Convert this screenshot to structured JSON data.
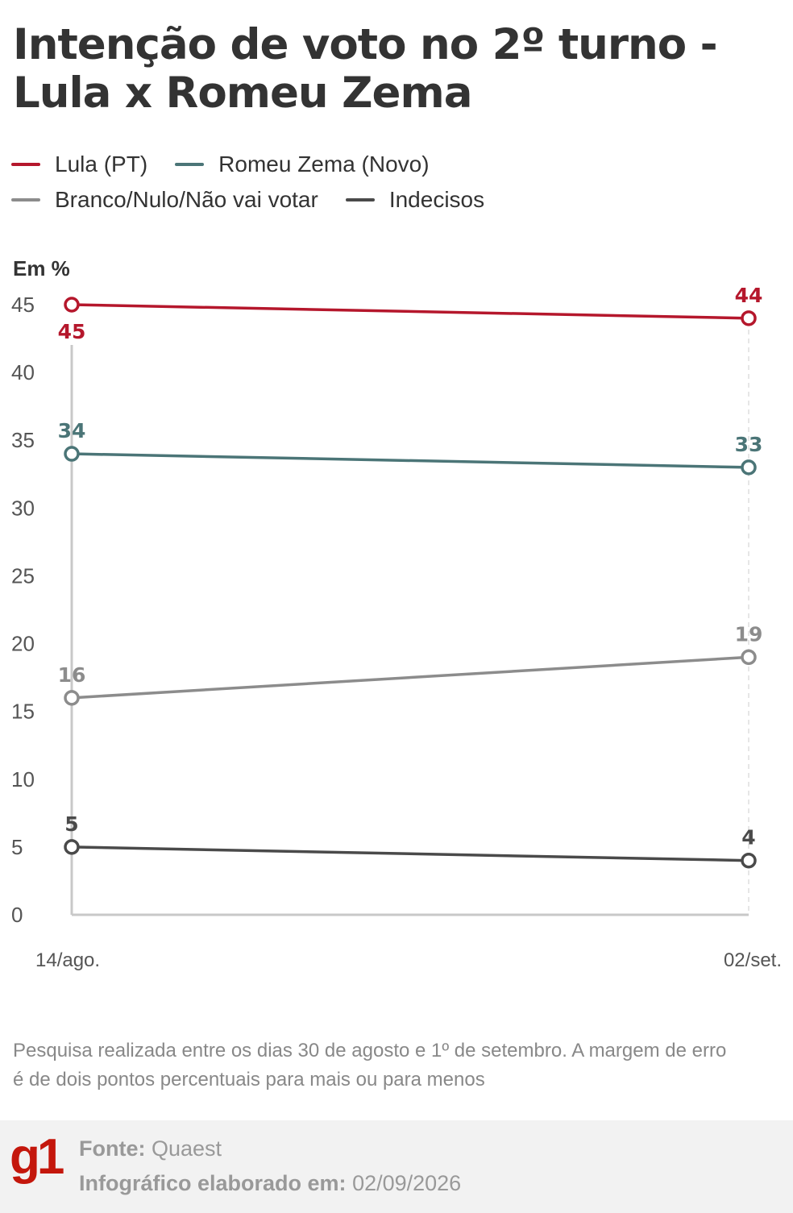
{
  "title_line1": "Intenção de voto no 2º turno -",
  "title_line2": "Lula x Romeu Zema",
  "legend": [
    {
      "label": "Lula (PT)",
      "color": "#b5172c"
    },
    {
      "label": "Romeu Zema (Novo)",
      "color": "#4b7577"
    },
    {
      "label": "Branco/Nulo/Não vai votar",
      "color": "#8c8c8c"
    },
    {
      "label": "Indecisos",
      "color": "#4a4a4a"
    }
  ],
  "chart_data": {
    "type": "line",
    "ylabel": "Em %",
    "ylim": [
      0,
      45
    ],
    "yticks": [
      0,
      5,
      10,
      15,
      20,
      25,
      30,
      35,
      40,
      45
    ],
    "x": [
      "14/ago.",
      "02/set."
    ],
    "series": [
      {
        "name": "Lula (PT)",
        "color": "#b5172c",
        "values": [
          45,
          44
        ]
      },
      {
        "name": "Romeu Zema (Novo)",
        "color": "#4b7577",
        "values": [
          34,
          33
        ]
      },
      {
        "name": "Branco/Nulo/Não vai votar",
        "color": "#8c8c8c",
        "values": [
          16,
          19
        ]
      },
      {
        "name": "Indecisos",
        "color": "#4a4a4a",
        "values": [
          5,
          4
        ]
      }
    ],
    "grid": false
  },
  "note": "Pesquisa realizada entre os dias 30 de agosto e 1º de setembro. A margem de erro é de dois pontos percentuais para mais ou para menos",
  "footer": {
    "logo": "g1",
    "source_label": "Fonte:",
    "source_value": "Quaest",
    "date_label": "Infográfico elaborado em:",
    "date_value": "02/09/2026"
  }
}
